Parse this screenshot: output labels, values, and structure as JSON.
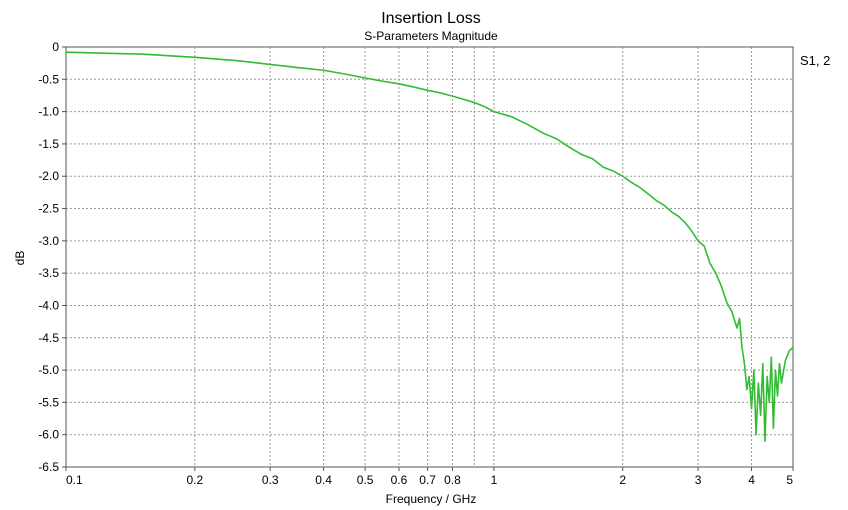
{
  "chart_data": {
    "type": "line",
    "title": "Insertion Loss",
    "subtitle": "S-Parameters Magnitude",
    "xlabel": "Frequency / GHz",
    "ylabel": "dB",
    "x_scale": "log",
    "xlim": [
      0.1,
      5
    ],
    "ylim": [
      -6.5,
      0
    ],
    "grid": true,
    "legend_position": "top-right",
    "x_ticks": [
      {
        "value": 0.1,
        "label": "0.1"
      },
      {
        "value": 0.2,
        "label": "0.2"
      },
      {
        "value": 0.3,
        "label": "0.3"
      },
      {
        "value": 0.4,
        "label": "0.4"
      },
      {
        "value": 0.5,
        "label": "0.5"
      },
      {
        "value": 0.6,
        "label": "0.6"
      },
      {
        "value": 0.7,
        "label": "0.7"
      },
      {
        "value": 0.8,
        "label": "0.8"
      },
      {
        "value": 1,
        "label": "1"
      },
      {
        "value": 2,
        "label": "2"
      },
      {
        "value": 3,
        "label": "3"
      },
      {
        "value": 4,
        "label": "4"
      },
      {
        "value": 5,
        "label": "5"
      }
    ],
    "x_minor_ticks": [
      0.9
    ],
    "y_ticks": [
      {
        "value": 0,
        "label": "0"
      },
      {
        "value": -0.5,
        "label": "-0.5"
      },
      {
        "value": -1.0,
        "label": "-1.0"
      },
      {
        "value": -1.5,
        "label": "-1.5"
      },
      {
        "value": -2.0,
        "label": "-2.0"
      },
      {
        "value": -2.5,
        "label": "-2.5"
      },
      {
        "value": -3.0,
        "label": "-3.0"
      },
      {
        "value": -3.5,
        "label": "-3.5"
      },
      {
        "value": -4.0,
        "label": "-4.0"
      },
      {
        "value": -4.5,
        "label": "-4.5"
      },
      {
        "value": -5.0,
        "label": "-5.0"
      },
      {
        "value": -5.5,
        "label": "-5.5"
      },
      {
        "value": -6.0,
        "label": "-6.0"
      },
      {
        "value": -6.5,
        "label": "-6.5"
      }
    ],
    "series": [
      {
        "name": "S1, 2",
        "color": "#33bb33",
        "x": [
          0.1,
          0.15,
          0.2,
          0.25,
          0.3,
          0.35,
          0.4,
          0.45,
          0.5,
          0.55,
          0.6,
          0.65,
          0.7,
          0.75,
          0.8,
          0.85,
          0.9,
          0.95,
          1.0,
          1.1,
          1.2,
          1.3,
          1.4,
          1.5,
          1.6,
          1.7,
          1.8,
          1.9,
          2.0,
          2.1,
          2.2,
          2.3,
          2.4,
          2.5,
          2.6,
          2.7,
          2.8,
          2.9,
          3.0,
          3.1,
          3.2,
          3.3,
          3.4,
          3.5,
          3.6,
          3.7,
          3.75,
          3.8,
          3.85,
          3.9,
          3.95,
          4.0,
          4.05,
          4.1,
          4.15,
          4.2,
          4.25,
          4.3,
          4.35,
          4.4,
          4.45,
          4.5,
          4.55,
          4.6,
          4.65,
          4.7,
          4.8,
          4.9,
          5.0
        ],
        "y": [
          -0.08,
          -0.11,
          -0.16,
          -0.21,
          -0.27,
          -0.32,
          -0.36,
          -0.42,
          -0.48,
          -0.53,
          -0.57,
          -0.62,
          -0.67,
          -0.71,
          -0.76,
          -0.81,
          -0.86,
          -0.92,
          -1.0,
          -1.08,
          -1.2,
          -1.33,
          -1.42,
          -1.55,
          -1.66,
          -1.73,
          -1.86,
          -1.92,
          -2.0,
          -2.1,
          -2.18,
          -2.28,
          -2.38,
          -2.45,
          -2.55,
          -2.62,
          -2.72,
          -2.85,
          -3.0,
          -3.08,
          -3.35,
          -3.5,
          -3.7,
          -3.95,
          -4.1,
          -4.35,
          -4.2,
          -4.65,
          -4.9,
          -5.3,
          -5.1,
          -5.6,
          -5.0,
          -6.0,
          -5.2,
          -5.7,
          -4.9,
          -6.1,
          -5.1,
          -5.5,
          -4.8,
          -5.9,
          -5.0,
          -5.4,
          -4.9,
          -5.2,
          -4.85,
          -4.7,
          -4.65
        ]
      }
    ]
  }
}
